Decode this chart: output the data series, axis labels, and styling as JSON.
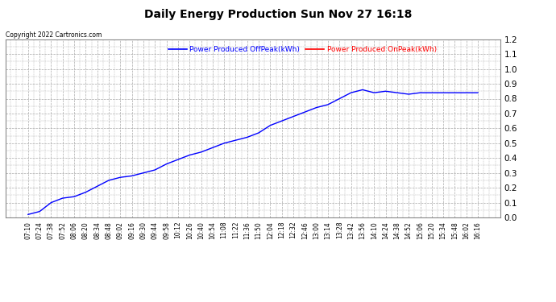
{
  "title": "Daily Energy Production Sun Nov 27 16:18",
  "copyright": "Copyright 2022 Cartronics.com",
  "legend_offpeak": "Power Produced OffPeak(kWh)",
  "legend_onpeak": "Power Produced OnPeak(kWh)",
  "color_offpeak": "blue",
  "color_onpeak": "red",
  "ylim": [
    0.0,
    1.2
  ],
  "yticks": [
    0.0,
    0.1,
    0.2,
    0.3,
    0.4,
    0.5,
    0.6,
    0.7,
    0.8,
    0.9,
    1.0,
    1.1,
    1.2
  ],
  "xtick_labels": [
    "07:10",
    "07:24",
    "07:38",
    "07:52",
    "08:06",
    "08:20",
    "08:34",
    "08:48",
    "09:02",
    "09:16",
    "09:30",
    "09:44",
    "09:58",
    "10:12",
    "10:26",
    "10:40",
    "10:54",
    "11:08",
    "11:22",
    "11:36",
    "11:50",
    "12:04",
    "12:18",
    "12:32",
    "12:46",
    "13:00",
    "13:14",
    "13:28",
    "13:42",
    "13:56",
    "14:10",
    "14:24",
    "14:38",
    "14:52",
    "15:06",
    "15:20",
    "15:34",
    "15:48",
    "16:02",
    "16:16"
  ],
  "background_color": "#ffffff",
  "figure_bg": "#ffffff",
  "grid_color": "#aaaaaa",
  "title_color": "#000000",
  "curve_data_x": [
    0,
    1,
    2,
    3,
    4,
    5,
    6,
    7,
    8,
    9,
    10,
    11,
    12,
    13,
    14,
    15,
    16,
    17,
    18,
    19,
    20,
    21,
    22,
    23,
    24,
    25,
    26,
    27,
    28,
    29,
    30,
    31,
    32,
    33,
    34,
    35,
    36,
    37,
    38,
    39
  ],
  "curve_data_y": [
    0.02,
    0.04,
    0.1,
    0.13,
    0.14,
    0.17,
    0.21,
    0.25,
    0.27,
    0.28,
    0.3,
    0.32,
    0.36,
    0.39,
    0.42,
    0.44,
    0.47,
    0.5,
    0.52,
    0.54,
    0.57,
    0.62,
    0.65,
    0.68,
    0.71,
    0.74,
    0.76,
    0.8,
    0.84,
    0.86,
    0.84,
    0.85,
    0.84,
    0.83,
    0.84,
    0.84,
    0.84,
    0.84,
    0.84,
    0.84
  ]
}
